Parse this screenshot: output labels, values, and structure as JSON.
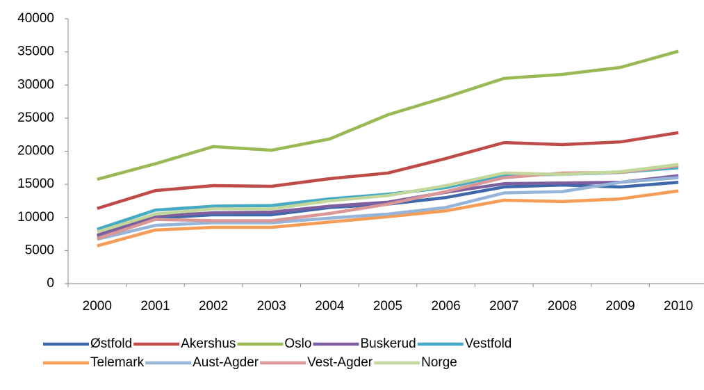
{
  "chart_data": {
    "type": "line",
    "categories": [
      "2000",
      "2001",
      "2002",
      "2003",
      "2004",
      "2005",
      "2006",
      "2007",
      "2008",
      "2009",
      "2010"
    ],
    "series": [
      {
        "name": "Østfold",
        "color": "#3f68aa",
        "values": [
          7200,
          9900,
          10400,
          10400,
          11500,
          12000,
          13000,
          14600,
          14900,
          14600,
          15300
        ]
      },
      {
        "name": "Akershus",
        "color": "#be4b48",
        "values": [
          11350,
          14050,
          14800,
          14700,
          15850,
          16700,
          18900,
          21300,
          21000,
          21400,
          22800
        ]
      },
      {
        "name": "Oslo",
        "color": "#98b954",
        "values": [
          15750,
          18100,
          20700,
          20150,
          21850,
          25500,
          28150,
          31000,
          31600,
          32650,
          35100
        ]
      },
      {
        "name": "Buskerud",
        "color": "#7d5fa0",
        "values": [
          7300,
          10200,
          10700,
          10800,
          11700,
          12300,
          13800,
          15100,
          15200,
          15300,
          16300
        ]
      },
      {
        "name": "Vestfold",
        "color": "#46aac5",
        "values": [
          8200,
          11100,
          11700,
          11800,
          12800,
          13500,
          14500,
          16400,
          16500,
          16800,
          17500
        ]
      },
      {
        "name": "Telemark",
        "color": "#f59d56",
        "values": [
          5700,
          8100,
          8500,
          8500,
          9300,
          10100,
          11000,
          12600,
          12400,
          12800,
          14000
        ]
      },
      {
        "name": "Aust-Agder",
        "color": "#96b4d8",
        "values": [
          6700,
          8800,
          9200,
          9200,
          9900,
          10500,
          11500,
          13700,
          13900,
          15300,
          16000
        ]
      },
      {
        "name": "Vest-Agder",
        "color": "#da9796",
        "values": [
          6800,
          9700,
          9500,
          9500,
          10600,
          12000,
          13900,
          16000,
          16700,
          16800,
          17800
        ]
      },
      {
        "name": "Norge",
        "color": "#c3d69b",
        "values": [
          7800,
          10500,
          11300,
          11300,
          12500,
          13300,
          14800,
          16700,
          16500,
          16900,
          18000
        ]
      }
    ],
    "ylim": [
      0,
      40000
    ],
    "yticks": [
      0,
      5000,
      10000,
      15000,
      20000,
      25000,
      30000,
      35000,
      40000
    ],
    "legend": "bottom"
  }
}
